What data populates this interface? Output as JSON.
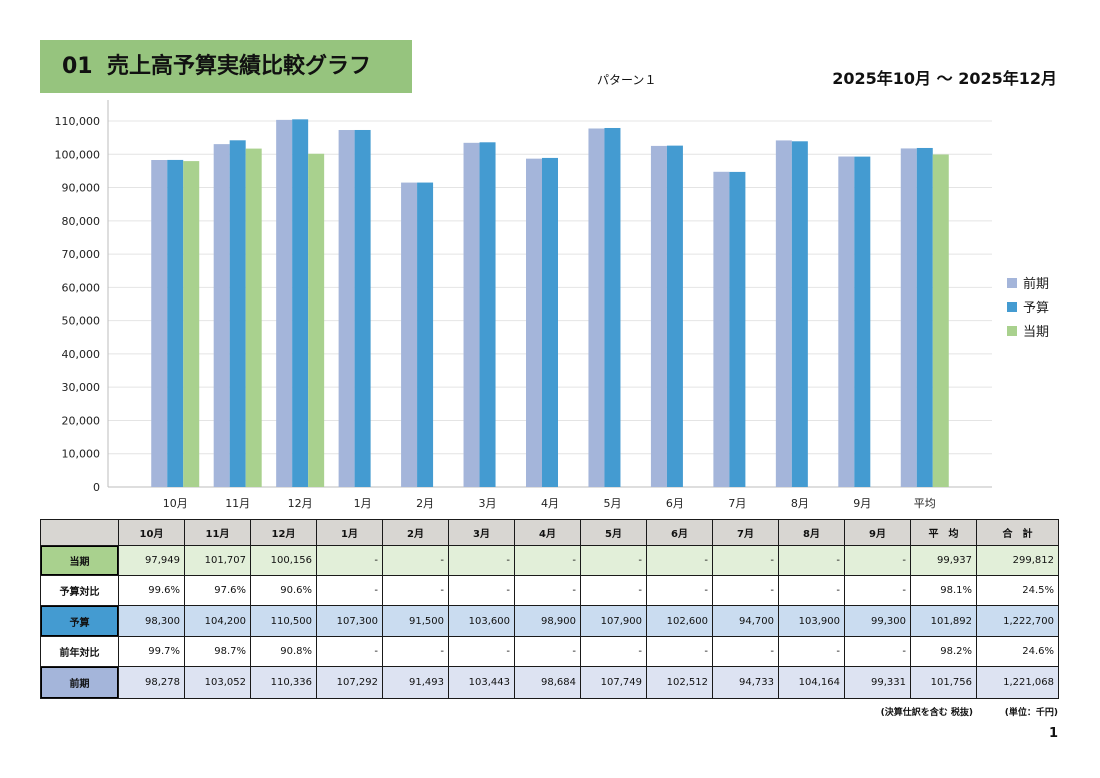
{
  "header": {
    "number": "01",
    "title": "売上高予算実績比較グラフ",
    "pattern": "パターン１",
    "period": "2025年10月 ～ 2025年12月"
  },
  "chart_data": {
    "type": "bar",
    "categories": [
      "10月",
      "11月",
      "12月",
      "1月",
      "2月",
      "3月",
      "4月",
      "5月",
      "6月",
      "7月",
      "8月",
      "9月",
      "平均"
    ],
    "series": [
      {
        "name": "前期",
        "color": "#a4b5da",
        "values": [
          98278,
          103052,
          110336,
          107292,
          91493,
          103443,
          98684,
          107749,
          102512,
          94733,
          104164,
          99331,
          101756
        ]
      },
      {
        "name": "予算",
        "color": "#449bd1",
        "values": [
          98300,
          104200,
          110500,
          107300,
          91500,
          103600,
          98900,
          107900,
          102600,
          94700,
          103900,
          99300,
          101892
        ]
      },
      {
        "name": "当期",
        "color": "#a9d18e",
        "values": [
          97949,
          101707,
          100156,
          null,
          null,
          null,
          null,
          null,
          null,
          null,
          null,
          null,
          99937
        ]
      }
    ],
    "y_tick_labels": [
      "0",
      "10,000",
      "20,000",
      "30,000",
      "40,000",
      "50,000",
      "60,000",
      "70,000",
      "80,000",
      "90,000",
      "100,000",
      "110,000"
    ],
    "ylim": [
      0,
      110000
    ],
    "grid": true,
    "legend": "right"
  },
  "table": {
    "header": [
      "10月",
      "11月",
      "12月",
      "1月",
      "2月",
      "3月",
      "4月",
      "5月",
      "6月",
      "7月",
      "8月",
      "9月",
      "平　均",
      "合　計"
    ],
    "rows": [
      {
        "label": "当期",
        "label_color": "#a9d18e",
        "cell_color": "#e2efd9",
        "cells": [
          "97,949",
          "101,707",
          "100,156",
          "-",
          "-",
          "-",
          "-",
          "-",
          "-",
          "-",
          "-",
          "-",
          "99,937",
          "299,812"
        ]
      },
      {
        "label": "予算対比",
        "label_color": null,
        "cell_color": null,
        "cells": [
          "99.6%",
          "97.6%",
          "90.6%",
          "-",
          "-",
          "-",
          "-",
          "-",
          "-",
          "-",
          "-",
          "-",
          "98.1%",
          "24.5%"
        ]
      },
      {
        "label": "予算",
        "label_color": "#449bd1",
        "cell_color": "#cadcf0",
        "cells": [
          "98,300",
          "104,200",
          "110,500",
          "107,300",
          "91,500",
          "103,600",
          "98,900",
          "107,900",
          "102,600",
          "94,700",
          "103,900",
          "99,300",
          "101,892",
          "1,222,700"
        ]
      },
      {
        "label": "前年対比",
        "label_color": null,
        "cell_color": null,
        "cells": [
          "99.7%",
          "98.7%",
          "90.8%",
          "-",
          "-",
          "-",
          "-",
          "-",
          "-",
          "-",
          "-",
          "-",
          "98.2%",
          "24.6%"
        ]
      },
      {
        "label": "前期",
        "label_color": "#a4b5da",
        "cell_color": "#dde3f2",
        "cells": [
          "98,278",
          "103,052",
          "110,336",
          "107,292",
          "91,493",
          "103,443",
          "98,684",
          "107,749",
          "102,512",
          "94,733",
          "104,164",
          "99,331",
          "101,756",
          "1,221,068"
        ]
      }
    ]
  },
  "footer": {
    "note": "(決算仕訳を含む 税抜)",
    "unit": "(単位：千円)",
    "page": "1"
  }
}
